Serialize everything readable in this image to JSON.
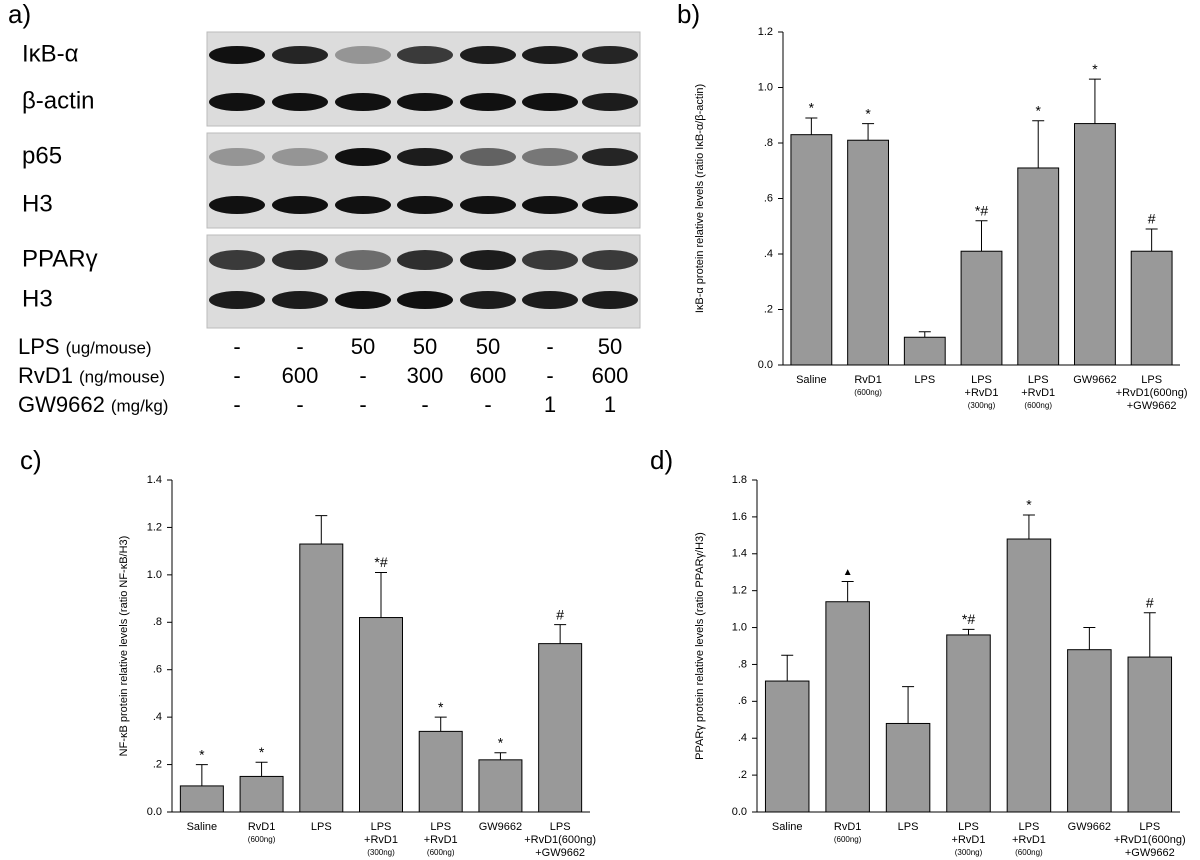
{
  "blot": {
    "panel_label": "a)",
    "rows": [
      "IκB-α",
      "β-actin",
      "p65",
      "H3",
      "PPARγ",
      "H3"
    ],
    "treatments": [
      {
        "name": "LPS",
        "unit": "(ug/mouse)",
        "values": [
          "-",
          "-",
          "50",
          "50",
          "50",
          "-",
          "50"
        ]
      },
      {
        "name": "RvD1",
        "unit": "(ng/mouse)",
        "values": [
          "-",
          "600",
          "-",
          "300",
          "600",
          "-",
          "600"
        ]
      },
      {
        "name": "GW9662",
        "unit": "(mg/kg)",
        "values": [
          "-",
          "-",
          "-",
          "-",
          "-",
          "1",
          "1"
        ]
      }
    ]
  },
  "chart_data": [
    {
      "type": "bar",
      "panel_label": "b)",
      "y_label": "IκB-α protein relative levels (ratio IκB-α/β-actin)",
      "categories": [
        [
          "Saline"
        ],
        [
          "RvD1",
          "(600ng)"
        ],
        [
          "LPS"
        ],
        [
          "LPS",
          "+RvD1",
          "(300ng)"
        ],
        [
          "LPS",
          "+RvD1",
          "(600ng)"
        ],
        [
          "GW9662"
        ],
        [
          "LPS",
          "+RvD1(600ng)",
          "+GW9662"
        ]
      ],
      "values": [
        0.83,
        0.81,
        0.1,
        0.41,
        0.71,
        0.87,
        0.41
      ],
      "errors": [
        0.06,
        0.06,
        0.02,
        0.11,
        0.17,
        0.16,
        0.08
      ],
      "annotations": [
        "*",
        "*",
        null,
        "*#",
        "*",
        "*",
        "#"
      ],
      "color": "#999999",
      "ylim": [
        0,
        1.2
      ],
      "yticks": [
        {
          "value": 0,
          "label": "0.0"
        },
        {
          "value": 0.2,
          "label": ".2"
        },
        {
          "value": 0.4,
          "label": ".4"
        },
        {
          "value": 0.6,
          "label": ".6"
        },
        {
          "value": 0.8,
          "label": ".8"
        },
        {
          "value": 1.0,
          "label": "1.0"
        },
        {
          "value": 1.2,
          "label": "1.2"
        }
      ]
    },
    {
      "type": "bar",
      "panel_label": "c)",
      "y_label": "NF-κB protein relative levels (ratio NF-κB/H3)",
      "categories": [
        [
          "Saline"
        ],
        [
          "RvD1",
          "(600ng)"
        ],
        [
          "LPS"
        ],
        [
          "LPS",
          "+RvD1",
          "(300ng)"
        ],
        [
          "LPS",
          "+RvD1",
          "(600ng)"
        ],
        [
          "GW9662"
        ],
        [
          "LPS",
          "+RvD1(600ng)",
          "+GW9662"
        ]
      ],
      "values": [
        0.11,
        0.15,
        1.13,
        0.82,
        0.34,
        0.22,
        0.71
      ],
      "errors": [
        0.09,
        0.06,
        0.12,
        0.19,
        0.06,
        0.03,
        0.08
      ],
      "annotations": [
        "*",
        "*",
        null,
        "*#",
        "*",
        "*",
        "#"
      ],
      "color": "#999999",
      "ylim": [
        0,
        1.4
      ],
      "yticks": [
        {
          "value": 0,
          "label": "0.0"
        },
        {
          "value": 0.2,
          "label": ".2"
        },
        {
          "value": 0.4,
          "label": ".4"
        },
        {
          "value": 0.6,
          "label": ".6"
        },
        {
          "value": 0.8,
          "label": ".8"
        },
        {
          "value": 1.0,
          "label": "1.0"
        },
        {
          "value": 1.2,
          "label": "1.2"
        },
        {
          "value": 1.4,
          "label": "1.4"
        }
      ]
    },
    {
      "type": "bar",
      "panel_label": "d)",
      "y_label": "PPARγ protein relative levels (ratio PPARγ/H3)",
      "categories": [
        [
          "Saline"
        ],
        [
          "RvD1",
          "(600ng)"
        ],
        [
          "LPS"
        ],
        [
          "LPS",
          "+RvD1",
          "(300ng)"
        ],
        [
          "LPS",
          "+RvD1",
          "(600ng)"
        ],
        [
          "GW9662"
        ],
        [
          "LPS",
          "+RvD1(600ng)",
          "+GW9662"
        ]
      ],
      "values": [
        0.71,
        1.14,
        0.48,
        0.96,
        1.48,
        0.88,
        0.84
      ],
      "errors": [
        0.14,
        0.11,
        0.2,
        0.03,
        0.13,
        0.12,
        0.24
      ],
      "annotations": [
        null,
        "▲",
        null,
        "*#",
        "*",
        null,
        "#"
      ],
      "color": "#999999",
      "ylim": [
        0,
        1.8
      ],
      "yticks": [
        {
          "value": 0,
          "label": "0.0"
        },
        {
          "value": 0.2,
          "label": ".2"
        },
        {
          "value": 0.4,
          "label": ".4"
        },
        {
          "value": 0.6,
          "label": ".6"
        },
        {
          "value": 0.8,
          "label": ".8"
        },
        {
          "value": 1.0,
          "label": "1.0"
        },
        {
          "value": 1.2,
          "label": "1.2"
        },
        {
          "value": 1.4,
          "label": "1.4"
        },
        {
          "value": 1.6,
          "label": "1.6"
        },
        {
          "value": 1.8,
          "label": "1.8"
        }
      ]
    }
  ]
}
